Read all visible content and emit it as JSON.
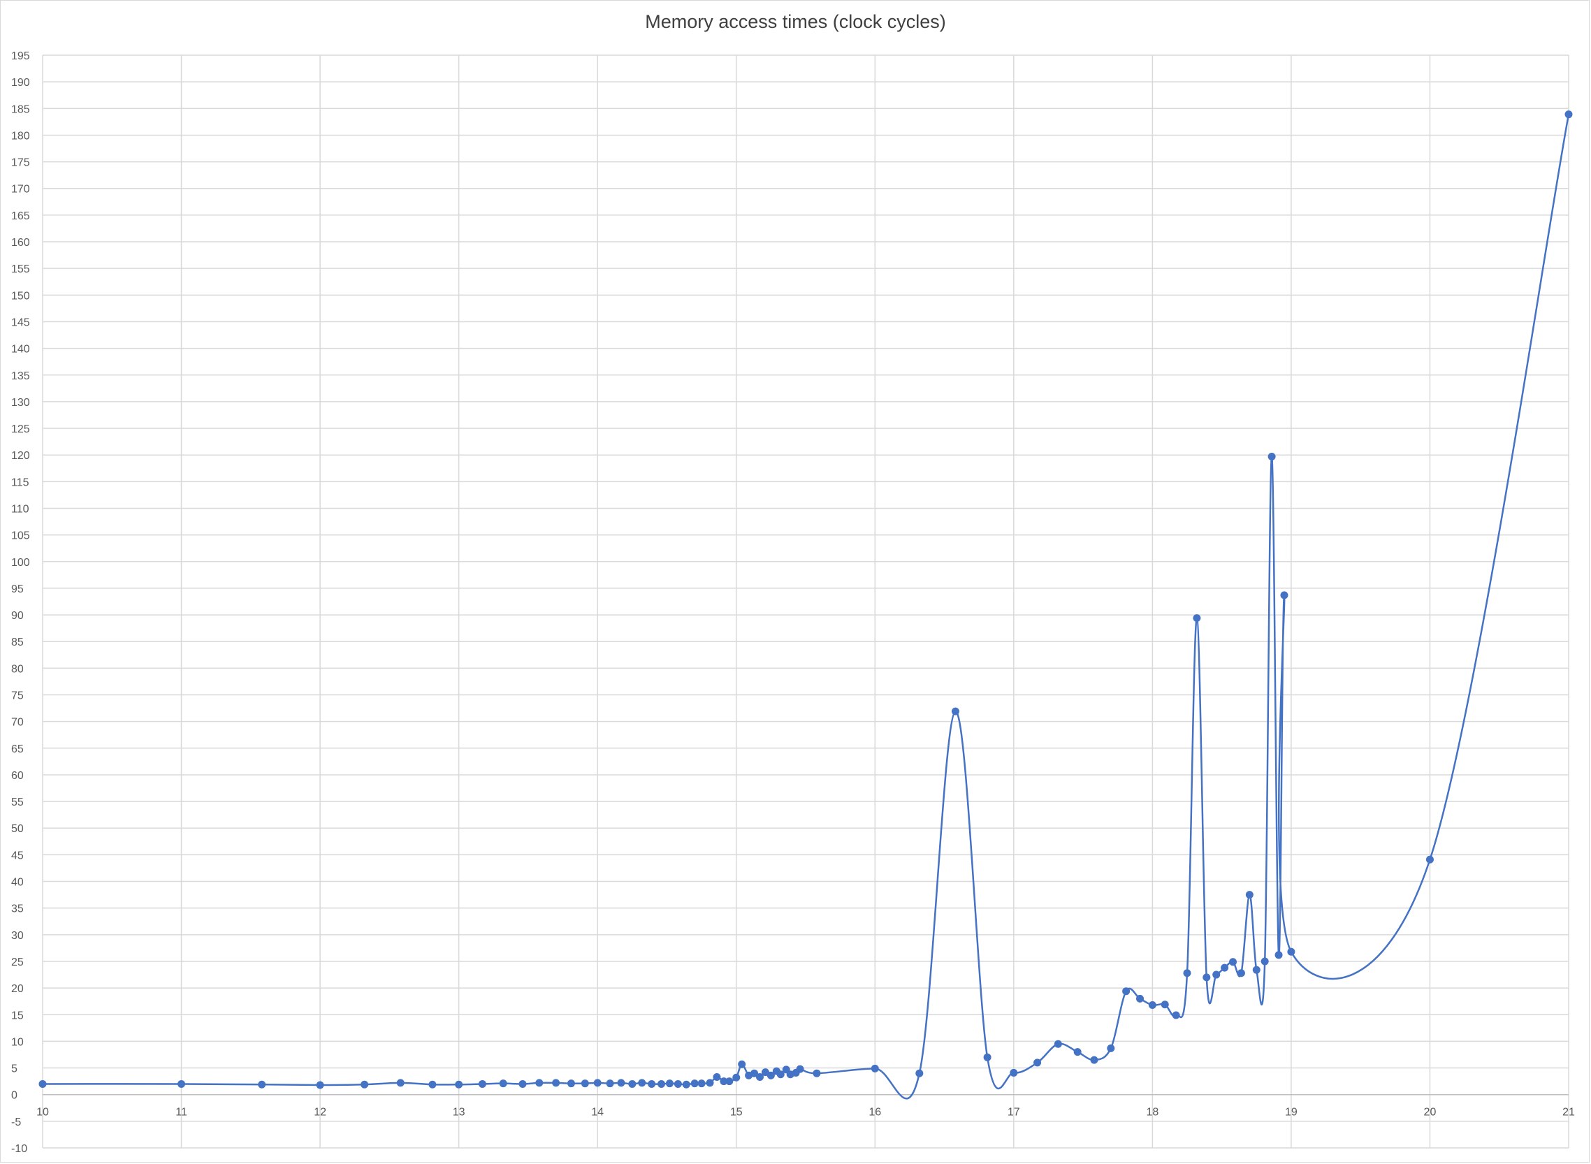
{
  "chart_data": {
    "type": "line",
    "title": "Memory access times (clock cycles)",
    "xlabel": "",
    "ylabel": "",
    "xlim": [
      10,
      21
    ],
    "ylim": [
      -10,
      195
    ],
    "x_ticks": [
      "10",
      "11",
      "12",
      "13",
      "14",
      "15",
      "16",
      "17",
      "18",
      "19",
      "20",
      "21"
    ],
    "y_ticks": [
      "-10",
      "-5",
      "0",
      "5",
      "10",
      "15",
      "20",
      "25",
      "30",
      "35",
      "40",
      "45",
      "50",
      "55",
      "60",
      "65",
      "70",
      "75",
      "80",
      "85",
      "90",
      "95",
      "100",
      "105",
      "110",
      "115",
      "120",
      "125",
      "130",
      "135",
      "140",
      "145",
      "150",
      "155",
      "160",
      "165",
      "170",
      "175",
      "180",
      "185",
      "190",
      "195"
    ],
    "grid": true,
    "legend": "none",
    "series_color": "#4472c4",
    "smooth": true,
    "series": [
      {
        "points": [
          [
            10.0,
            2.0
          ],
          [
            11.0,
            2.0
          ],
          [
            11.58,
            1.9
          ],
          [
            12.0,
            1.8
          ],
          [
            12.32,
            1.9
          ],
          [
            12.58,
            2.2
          ],
          [
            12.81,
            1.9
          ],
          [
            13.0,
            1.9
          ],
          [
            13.17,
            2.0
          ],
          [
            13.32,
            2.1
          ],
          [
            13.46,
            2.0
          ],
          [
            13.58,
            2.2
          ],
          [
            13.7,
            2.2
          ],
          [
            13.81,
            2.1
          ],
          [
            13.91,
            2.1
          ],
          [
            14.0,
            2.2
          ],
          [
            14.09,
            2.1
          ],
          [
            14.17,
            2.2
          ],
          [
            14.25,
            2.0
          ],
          [
            14.32,
            2.2
          ],
          [
            14.39,
            2.0
          ],
          [
            14.46,
            2.0
          ],
          [
            14.52,
            2.1
          ],
          [
            14.58,
            2.0
          ],
          [
            14.64,
            1.9
          ],
          [
            14.7,
            2.1
          ],
          [
            14.75,
            2.1
          ],
          [
            14.81,
            2.2
          ],
          [
            14.86,
            3.3
          ],
          [
            14.91,
            2.5
          ],
          [
            14.95,
            2.5
          ],
          [
            15.0,
            3.2
          ],
          [
            15.04,
            5.7
          ],
          [
            15.09,
            3.6
          ],
          [
            15.13,
            4.0
          ],
          [
            15.17,
            3.3
          ],
          [
            15.21,
            4.2
          ],
          [
            15.25,
            3.6
          ],
          [
            15.29,
            4.4
          ],
          [
            15.32,
            3.8
          ],
          [
            15.36,
            4.7
          ],
          [
            15.39,
            3.8
          ],
          [
            15.43,
            4.1
          ],
          [
            15.46,
            4.8
          ],
          [
            15.58,
            4.0
          ],
          [
            16.0,
            4.9
          ],
          [
            16.32,
            4.0
          ],
          [
            16.58,
            71.9
          ],
          [
            16.81,
            7.0
          ],
          [
            17.0,
            4.1
          ],
          [
            17.17,
            6.0
          ],
          [
            17.32,
            9.5
          ],
          [
            17.46,
            8.0
          ],
          [
            17.58,
            6.5
          ],
          [
            17.7,
            8.7
          ],
          [
            17.81,
            19.4
          ],
          [
            17.91,
            18.0
          ],
          [
            18.0,
            16.8
          ],
          [
            18.09,
            16.9
          ],
          [
            18.17,
            14.9
          ],
          [
            18.25,
            22.8
          ],
          [
            18.32,
            89.4
          ],
          [
            18.39,
            22.0
          ],
          [
            18.46,
            22.5
          ],
          [
            18.52,
            23.8
          ],
          [
            18.58,
            24.9
          ],
          [
            18.64,
            22.8
          ],
          [
            18.7,
            37.5
          ],
          [
            18.75,
            23.4
          ],
          [
            18.81,
            25.0
          ],
          [
            18.86,
            119.7
          ],
          [
            18.91,
            26.2
          ],
          [
            18.95,
            93.7
          ],
          [
            19.0,
            26.8
          ],
          [
            20.0,
            44.1
          ],
          [
            21.0,
            183.9
          ]
        ]
      }
    ]
  }
}
